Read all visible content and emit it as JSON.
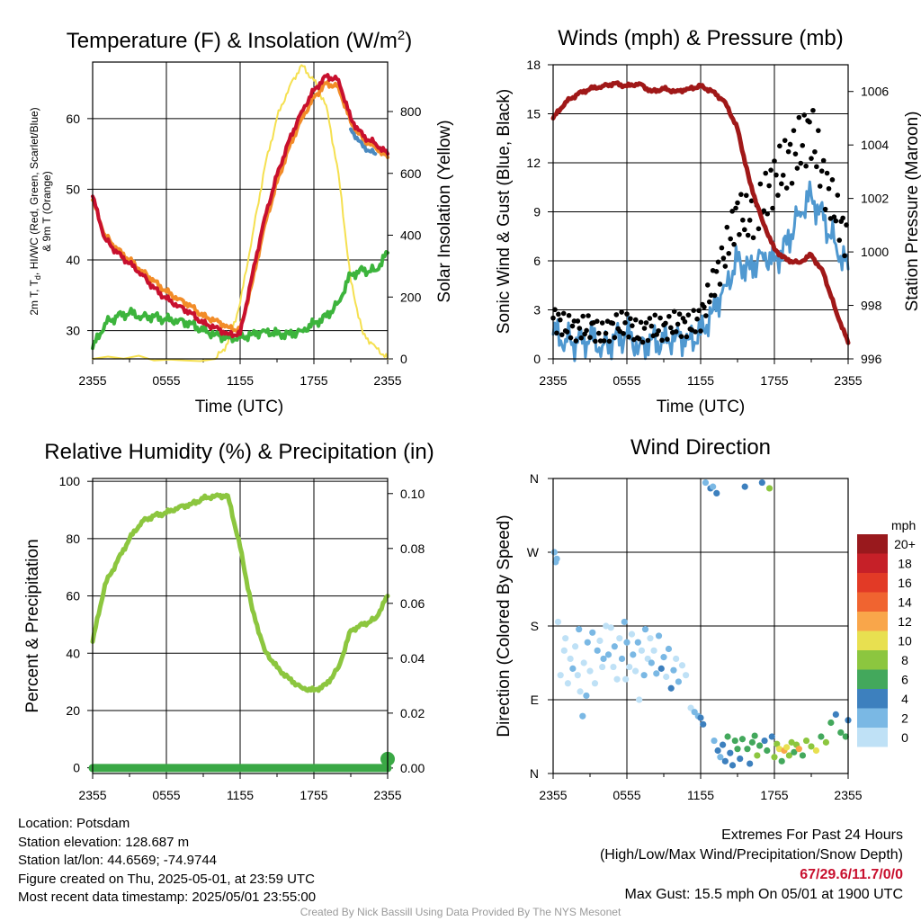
{
  "x_tick_labels": [
    "2355",
    "0555",
    "1155",
    "1755",
    "2355"
  ],
  "colors": {
    "temp": "#c8102e",
    "heat_index": "#d62728",
    "nine_m": "#f28c28",
    "dewpoint": "#3cb43c",
    "windchill": "#4a8ac0",
    "insolation": "#f5e050",
    "wind": "#4f98d0",
    "gust": "#000000",
    "pressure": "#a01818",
    "rh": "#8cc63f",
    "precip": "#3aa845"
  },
  "chart_data": [
    {
      "type": "line",
      "title_main": "Temperature (F) & Insolation (W/m",
      "title_sup": "2",
      "title_end": ")",
      "xlabel": "Time (UTC)",
      "ylabel_line1": "2m T, T",
      "ylabel_sub": "d",
      "ylabel_line1_end": ", HI/WC (Red, Green, Scarlet/Blue)",
      "ylabel_line2": "& 9m T (Orange)",
      "ylabel_right": "Solar Insolation (Yellow)",
      "ylim": [
        26,
        68
      ],
      "yticks": [
        30,
        40,
        50,
        60
      ],
      "ylim_right": [
        0,
        960
      ],
      "yticks_right": [
        0,
        200,
        400,
        600,
        800
      ],
      "x_hours": [
        0,
        1,
        2,
        3,
        4,
        5,
        6,
        7,
        8,
        9,
        10,
        11,
        12,
        13,
        14,
        15,
        16,
        17,
        18,
        19,
        20,
        21,
        22,
        23,
        24
      ],
      "series": [
        {
          "key": "temp",
          "values": [
            49,
            43,
            41,
            39.5,
            38,
            36,
            34.5,
            33.5,
            32.5,
            31,
            30.5,
            29.5,
            29.5,
            38,
            46,
            52,
            57,
            61,
            64,
            66,
            65.5,
            60,
            57.5,
            56.5,
            55
          ]
        },
        {
          "key": "nine_m",
          "values": [
            48.5,
            43.5,
            41.5,
            40,
            38.5,
            37,
            35.5,
            34.5,
            33.5,
            32,
            31.5,
            30.5,
            30,
            37,
            45,
            51,
            56,
            60,
            63,
            65,
            64.5,
            59.5,
            57,
            56,
            54.5
          ]
        },
        {
          "key": "dewpoint",
          "values": [
            27.5,
            31,
            32,
            32.5,
            32,
            32,
            31.5,
            31.5,
            31,
            30,
            29.5,
            29,
            29,
            29.5,
            30,
            29.5,
            29.5,
            30,
            31,
            32,
            34,
            38,
            38.5,
            38.5,
            41
          ]
        },
        {
          "key": "windchill",
          "values": [
            null,
            null,
            null,
            null,
            null,
            null,
            null,
            null,
            null,
            null,
            null,
            null,
            null,
            39,
            null,
            null,
            57,
            null,
            null,
            null,
            null,
            58.5,
            56,
            55,
            null
          ]
        }
      ],
      "insolation": {
        "x": [
          0,
          10,
          11,
          12,
          13,
          14,
          15,
          16,
          17,
          18,
          19,
          20,
          21,
          22,
          23,
          24
        ],
        "values": [
          0,
          0,
          50,
          180,
          400,
          620,
          780,
          880,
          950,
          900,
          820,
          600,
          250,
          80,
          40,
          0
        ]
      }
    },
    {
      "type": "line",
      "title": "Winds (mph) & Pressure (mb)",
      "xlabel": "Time (UTC)",
      "ylabel": "Sonic Wind & Gust (Blue, Black)",
      "ylabel_right": "Station Pressure (Maroon)",
      "ylim": [
        0,
        18
      ],
      "yticks": [
        0,
        3,
        6,
        9,
        12,
        15,
        18
      ],
      "ylim_right": [
        996,
        1007
      ],
      "yticks_right": [
        996,
        998,
        1000,
        1002,
        1004,
        1006
      ],
      "x_hours": [
        0,
        1,
        2,
        3,
        4,
        5,
        6,
        7,
        8,
        9,
        10,
        11,
        12,
        13,
        14,
        15,
        16,
        17,
        18,
        19,
        20,
        21,
        22,
        23,
        24
      ],
      "series": [
        {
          "key": "wind",
          "name": "Sonic Wind",
          "values": [
            1.5,
            1.2,
            1,
            1.3,
            0.8,
            1.2,
            1.5,
            0.8,
            1.2,
            1,
            1.5,
            1.2,
            1.5,
            3,
            4.5,
            6,
            5.5,
            6.5,
            6,
            7,
            9,
            10,
            8.5,
            7,
            5.5
          ]
        },
        {
          "key": "gust",
          "name": "Gust",
          "values": [
            2.5,
            2,
            1.8,
            2,
            1.5,
            2,
            2.2,
            1.5,
            2,
            1.8,
            2.2,
            2,
            2.5,
            4.5,
            6.5,
            9,
            8.5,
            9.5,
            11,
            12,
            13,
            14,
            11,
            9,
            7
          ]
        },
        {
          "key": "pressure",
          "name": "Station Pressure",
          "values": [
            1005,
            1005.6,
            1005.9,
            1006.1,
            1006.2,
            1006.3,
            1006.2,
            1006.3,
            1006,
            1006.1,
            1006,
            1006.1,
            1006.2,
            1006,
            1005.6,
            1004.6,
            1002.6,
            1001.2,
            1000.1,
            999.7,
            999.6,
            999.9,
            999.2,
            997.8,
            996.6
          ]
        }
      ]
    },
    {
      "type": "line",
      "title": "Relative Humidity (%) & Precipitation (in)",
      "xlabel": "",
      "ylabel": "Percent & Precipitation",
      "ylim": [
        -2,
        101
      ],
      "yticks": [
        0,
        20,
        40,
        60,
        80,
        100
      ],
      "ylim_right": [
        -0.002,
        0.1055
      ],
      "yticks_right": [
        "0.00",
        "0.02",
        "0.04",
        "0.06",
        "0.08",
        "0.10"
      ],
      "x_hours": [
        0,
        1,
        2,
        3,
        4,
        5,
        6,
        7,
        8,
        9,
        10,
        11,
        12,
        13,
        14,
        15,
        16,
        17,
        18,
        19,
        20,
        21,
        22,
        23,
        24
      ],
      "series": [
        {
          "key": "rh",
          "name": "Relative Humidity",
          "values": [
            44,
            64,
            72,
            80,
            86,
            88,
            89,
            91,
            92,
            94,
            95,
            95,
            77,
            55,
            41,
            35,
            31,
            28,
            27,
            29,
            35,
            48,
            50,
            52,
            60
          ]
        },
        {
          "key": "precip",
          "name": "Precipitation",
          "values": [
            0,
            0,
            0,
            0,
            0,
            0,
            0,
            0,
            0,
            0,
            0,
            0,
            0,
            0,
            0,
            0,
            0,
            0,
            0,
            0,
            0,
            0,
            0,
            0,
            0
          ]
        }
      ]
    },
    {
      "type": "scatter",
      "title": "Wind Direction",
      "xlabel": "",
      "ylabel": "Direction (Colored By Speed)",
      "y_tick_labels": [
        "N",
        "E",
        "S",
        "W",
        "N"
      ],
      "y_tick_degrees": [
        0,
        90,
        180,
        270,
        360
      ],
      "legend_title": "mph",
      "legend_labels": [
        "20+",
        "18",
        "16",
        "14",
        "12",
        "10",
        "8",
        "6",
        "4",
        "2",
        "0"
      ],
      "legend_colors": [
        "#99191d",
        "#c62028",
        "#e23a26",
        "#f06430",
        "#f9a64a",
        "#e8e050",
        "#8cc63f",
        "#43a85c",
        "#3d80be",
        "#7ab8e4",
        "#bfe1f6"
      ],
      "points": [
        {
          "x": 0.1,
          "deg": 270,
          "mph": 2
        },
        {
          "x": 0.2,
          "deg": 258,
          "mph": 2
        },
        {
          "x": 0.3,
          "deg": 262,
          "mph": 2
        },
        {
          "x": 0.4,
          "deg": 185,
          "mph": 0
        },
        {
          "x": 0.6,
          "deg": 120,
          "mph": 0
        },
        {
          "x": 0.9,
          "deg": 150,
          "mph": 0
        },
        {
          "x": 1.0,
          "deg": 165,
          "mph": 0
        },
        {
          "x": 1.2,
          "deg": 110,
          "mph": 0
        },
        {
          "x": 1.4,
          "deg": 140,
          "mph": 0
        },
        {
          "x": 1.6,
          "deg": 128,
          "mph": 2
        },
        {
          "x": 1.8,
          "deg": 155,
          "mph": 0
        },
        {
          "x": 2.0,
          "deg": 120,
          "mph": 0
        },
        {
          "x": 2.1,
          "deg": 176,
          "mph": 2
        },
        {
          "x": 2.2,
          "deg": 100,
          "mph": 0
        },
        {
          "x": 2.4,
          "deg": 70,
          "mph": 2
        },
        {
          "x": 2.5,
          "deg": 135,
          "mph": 0
        },
        {
          "x": 2.7,
          "deg": 95,
          "mph": 2
        },
        {
          "x": 2.8,
          "deg": 160,
          "mph": 2
        },
        {
          "x": 3.0,
          "deg": 125,
          "mph": 0
        },
        {
          "x": 3.2,
          "deg": 172,
          "mph": 2
        },
        {
          "x": 3.4,
          "deg": 110,
          "mph": 0
        },
        {
          "x": 3.6,
          "deg": 150,
          "mph": 2
        },
        {
          "x": 3.8,
          "deg": 162,
          "mph": 0
        },
        {
          "x": 4.0,
          "deg": 130,
          "mph": 0
        },
        {
          "x": 4.1,
          "deg": 140,
          "mph": 2
        },
        {
          "x": 4.3,
          "deg": 180,
          "mph": 0
        },
        {
          "x": 4.5,
          "deg": 145,
          "mph": 2
        },
        {
          "x": 4.7,
          "deg": 178,
          "mph": 0
        },
        {
          "x": 4.9,
          "deg": 130,
          "mph": 0
        },
        {
          "x": 5.0,
          "deg": 155,
          "mph": 2
        },
        {
          "x": 5.2,
          "deg": 115,
          "mph": 0
        },
        {
          "x": 5.4,
          "deg": 165,
          "mph": 0
        },
        {
          "x": 5.6,
          "deg": 140,
          "mph": 2
        },
        {
          "x": 5.8,
          "deg": 185,
          "mph": 2
        },
        {
          "x": 5.9,
          "deg": 115,
          "mph": 0
        },
        {
          "x": 6.0,
          "deg": 160,
          "mph": 2
        },
        {
          "x": 6.2,
          "deg": 130,
          "mph": 0
        },
        {
          "x": 6.4,
          "deg": 170,
          "mph": 0
        },
        {
          "x": 6.5,
          "deg": 145,
          "mph": 2
        },
        {
          "x": 6.7,
          "deg": 125,
          "mph": 0
        },
        {
          "x": 6.9,
          "deg": 160,
          "mph": 2
        },
        {
          "x": 7.0,
          "deg": 90,
          "mph": 0
        },
        {
          "x": 7.2,
          "deg": 150,
          "mph": 0
        },
        {
          "x": 7.4,
          "deg": 120,
          "mph": 2
        },
        {
          "x": 7.5,
          "deg": 176,
          "mph": 2
        },
        {
          "x": 7.7,
          "deg": 140,
          "mph": 0
        },
        {
          "x": 7.9,
          "deg": 165,
          "mph": 0
        },
        {
          "x": 8.0,
          "deg": 135,
          "mph": 2
        },
        {
          "x": 8.2,
          "deg": 150,
          "mph": 0
        },
        {
          "x": 8.4,
          "deg": 122,
          "mph": 2
        },
        {
          "x": 8.6,
          "deg": 168,
          "mph": 2
        },
        {
          "x": 8.8,
          "deg": 128,
          "mph": 4
        },
        {
          "x": 9.0,
          "deg": 142,
          "mph": 2
        },
        {
          "x": 9.2,
          "deg": 118,
          "mph": 0
        },
        {
          "x": 9.4,
          "deg": 152,
          "mph": 2
        },
        {
          "x": 9.6,
          "deg": 104,
          "mph": 4
        },
        {
          "x": 9.8,
          "deg": 126,
          "mph": 2
        },
        {
          "x": 10.0,
          "deg": 140,
          "mph": 0
        },
        {
          "x": 10.2,
          "deg": 112,
          "mph": 2
        },
        {
          "x": 10.5,
          "deg": 132,
          "mph": 0
        },
        {
          "x": 10.8,
          "deg": 120,
          "mph": 0
        },
        {
          "x": 11.2,
          "deg": 80,
          "mph": 0
        },
        {
          "x": 11.5,
          "deg": 75,
          "mph": 2
        },
        {
          "x": 11.8,
          "deg": 70,
          "mph": 2
        },
        {
          "x": 12.0,
          "deg": 68,
          "mph": 4
        },
        {
          "x": 12.2,
          "deg": 60,
          "mph": 4
        },
        {
          "x": 12.4,
          "deg": 355,
          "mph": 2
        },
        {
          "x": 12.8,
          "deg": 348,
          "mph": 4
        },
        {
          "x": 13.0,
          "deg": 350,
          "mph": 2
        },
        {
          "x": 13.1,
          "deg": 40,
          "mph": 2
        },
        {
          "x": 13.3,
          "deg": 342,
          "mph": 4
        },
        {
          "x": 13.4,
          "deg": 28,
          "mph": 4
        },
        {
          "x": 13.6,
          "deg": 20,
          "mph": 2
        },
        {
          "x": 13.8,
          "deg": 35,
          "mph": 4
        },
        {
          "x": 14.0,
          "deg": 15,
          "mph": 4
        },
        {
          "x": 14.2,
          "deg": 45,
          "mph": 6
        },
        {
          "x": 14.4,
          "deg": 25,
          "mph": 4
        },
        {
          "x": 14.6,
          "deg": 10,
          "mph": 4
        },
        {
          "x": 14.8,
          "deg": 40,
          "mph": 6
        },
        {
          "x": 15.0,
          "deg": 30,
          "mph": 6
        },
        {
          "x": 15.2,
          "deg": 18,
          "mph": 4
        },
        {
          "x": 15.4,
          "deg": 42,
          "mph": 6
        },
        {
          "x": 15.6,
          "deg": 350,
          "mph": 4
        },
        {
          "x": 15.8,
          "deg": 30,
          "mph": 6
        },
        {
          "x": 16.0,
          "deg": 12,
          "mph": 4
        },
        {
          "x": 16.2,
          "deg": 38,
          "mph": 6
        },
        {
          "x": 16.4,
          "deg": 46,
          "mph": 6
        },
        {
          "x": 16.6,
          "deg": 22,
          "mph": 8
        },
        {
          "x": 16.8,
          "deg": 34,
          "mph": 6
        },
        {
          "x": 17.0,
          "deg": 355,
          "mph": 4
        },
        {
          "x": 17.2,
          "deg": 40,
          "mph": 4
        },
        {
          "x": 17.4,
          "deg": 28,
          "mph": 6
        },
        {
          "x": 17.6,
          "deg": 348,
          "mph": 8
        },
        {
          "x": 17.8,
          "deg": 45,
          "mph": 4
        },
        {
          "x": 18.0,
          "deg": 20,
          "mph": 8
        },
        {
          "x": 18.2,
          "deg": 36,
          "mph": 8
        },
        {
          "x": 18.4,
          "deg": 30,
          "mph": 10
        },
        {
          "x": 18.6,
          "deg": 15,
          "mph": 6
        },
        {
          "x": 18.8,
          "deg": 28,
          "mph": 12
        },
        {
          "x": 19.0,
          "deg": 32,
          "mph": 10
        },
        {
          "x": 19.2,
          "deg": 22,
          "mph": 8
        },
        {
          "x": 19.4,
          "deg": 38,
          "mph": 8
        },
        {
          "x": 19.6,
          "deg": 26,
          "mph": 6
        },
        {
          "x": 19.8,
          "deg": 35,
          "mph": 8
        },
        {
          "x": 20.0,
          "deg": 30,
          "mph": 12
        },
        {
          "x": 20.3,
          "deg": 22,
          "mph": 6
        },
        {
          "x": 20.6,
          "deg": 40,
          "mph": 8
        },
        {
          "x": 21.0,
          "deg": 33,
          "mph": 8
        },
        {
          "x": 21.4,
          "deg": 28,
          "mph": 10
        },
        {
          "x": 21.8,
          "deg": 45,
          "mph": 6
        },
        {
          "x": 22.2,
          "deg": 38,
          "mph": 8
        },
        {
          "x": 22.6,
          "deg": 62,
          "mph": 6
        },
        {
          "x": 23.0,
          "deg": 72,
          "mph": 4
        },
        {
          "x": 23.4,
          "deg": 50,
          "mph": 6
        },
        {
          "x": 23.8,
          "deg": 45,
          "mph": 6
        },
        {
          "x": 24.0,
          "deg": 65,
          "mph": 4
        }
      ]
    }
  ],
  "info": {
    "location": "Location: Potsdam",
    "elevation": "Station elevation: 128.687 m",
    "latlon": "Station lat/lon: 44.6569; -74.9744",
    "created": "Figure created on Thu, 2025-05-01, at 23:59 UTC",
    "recent": "Most recent data timestamp: 2025/05/01 23:55:00"
  },
  "extremes": {
    "title": "Extremes For Past 24 Hours",
    "subtitle": "(High/Low/Max Wind/Precipitation/Snow Depth)",
    "values": "67/29.6/11.7/0/0",
    "max_gust": "Max Gust: 15.5 mph On 05/01 at 1900 UTC"
  },
  "credit": "Created By Nick Bassill Using Data Provided By The NYS Mesonet"
}
